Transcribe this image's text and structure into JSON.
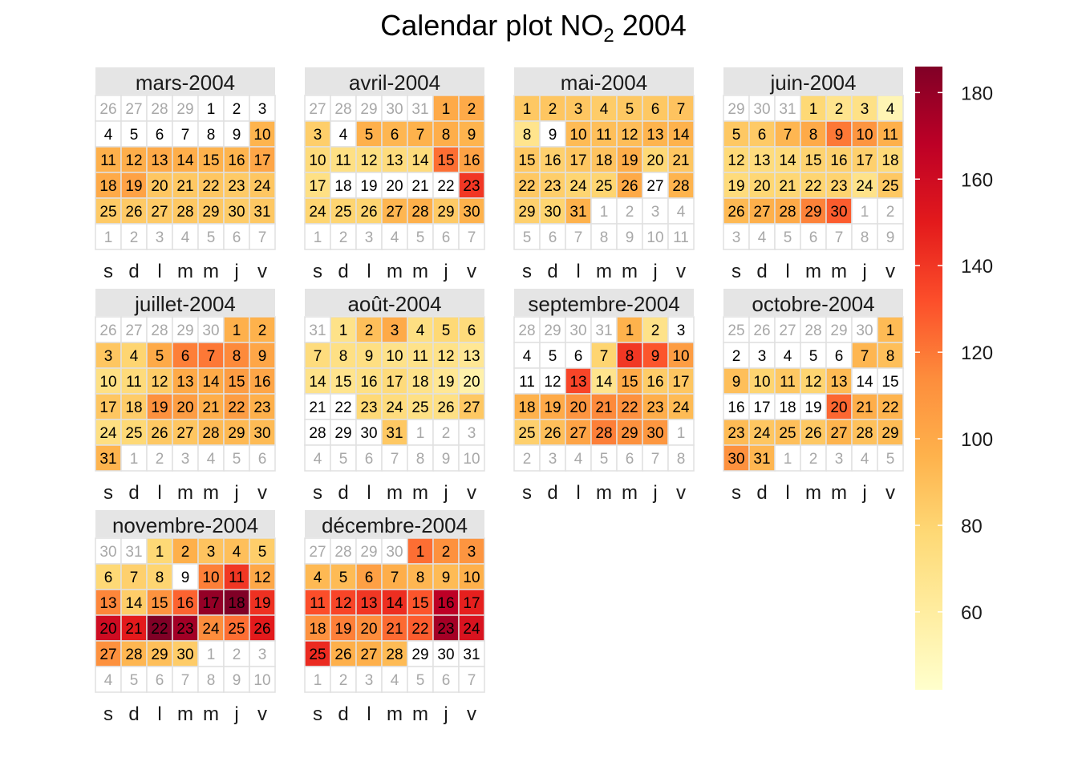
{
  "chart_data": {
    "type": "heatmap",
    "title": "Calendar plot NO",
    "title_subscript": "2",
    "title_suffix": " 2004",
    "weekday_labels": [
      "s",
      "d",
      "l",
      "m",
      "m",
      "j",
      "v"
    ],
    "colorbar": {
      "ticks": [
        60,
        80,
        100,
        120,
        140,
        160,
        180
      ],
      "range": [
        42,
        186
      ],
      "colors": [
        "#FFFFCC",
        "#FFEDA0",
        "#FED976",
        "#FEB24C",
        "#FD8D3C",
        "#FC4E2A",
        "#E31A1C",
        "#BD0026",
        "#800026"
      ]
    },
    "months": [
      {
        "label": "mars-2004",
        "first_weekday": 4,
        "days": 31,
        "prev_days": 29,
        "values": [
          null,
          null,
          null,
          null,
          null,
          null,
          null,
          null,
          null,
          95,
          97,
          98,
          100,
          98,
          96,
          95,
          102,
          100,
          104,
          87,
          86,
          87,
          85,
          87,
          85,
          85,
          85,
          86,
          86,
          84,
          86
        ]
      },
      {
        "label": "avril-2004",
        "first_weekday": 5,
        "days": 30,
        "prev_days": 31,
        "values": [
          100,
          100,
          83,
          null,
          97,
          94,
          96,
          98,
          95,
          76,
          72,
          73,
          75,
          76,
          123,
          104,
          72,
          null,
          null,
          null,
          null,
          null,
          140,
          80,
          80,
          80,
          94,
          97,
          85,
          96
        ]
      },
      {
        "label": "mai-2004",
        "first_weekday": 0,
        "days": 31,
        "prev_days": 30,
        "values": [
          86,
          87,
          87,
          84,
          86,
          86,
          88,
          68,
          null,
          92,
          90,
          91,
          95,
          96,
          86,
          82,
          87,
          88,
          98,
          78,
          87,
          86,
          83,
          80,
          80,
          100,
          null,
          95,
          82,
          80,
          96
        ]
      },
      {
        "label": "juin-2004",
        "first_weekday": 3,
        "days": 30,
        "prev_days": 31,
        "values": [
          78,
          68,
          71,
          52,
          86,
          85,
          94,
          100,
          120,
          110,
          97,
          77,
          75,
          76,
          81,
          82,
          82,
          77,
          76,
          79,
          79,
          80,
          81,
          70,
          86,
          93,
          97,
          100,
          117,
          128
        ]
      },
      {
        "label": "juillet-2004",
        "first_weekday": 5,
        "days": 31,
        "prev_days": 30,
        "values": [
          97,
          96,
          87,
          80,
          100,
          118,
          120,
          115,
          102,
          72,
          76,
          84,
          100,
          100,
          106,
          102,
          87,
          84,
          112,
          106,
          98,
          106,
          97,
          73,
          78,
          86,
          87,
          92,
          93,
          92,
          95
        ]
      },
      {
        "label": "août-2004",
        "first_weekday": 1,
        "days": 31,
        "prev_days": 31,
        "values": [
          70,
          90,
          100,
          73,
          78,
          76,
          75,
          72,
          73,
          70,
          70,
          70,
          65,
          70,
          68,
          72,
          76,
          70,
          65,
          56,
          null,
          null,
          78,
          75,
          72,
          72,
          86,
          null,
          null,
          null,
          86
        ]
      },
      {
        "label": "septembre-2004",
        "first_weekday": 4,
        "days": 30,
        "prev_days": 31,
        "values": [
          96,
          70,
          null,
          null,
          null,
          null,
          80,
          140,
          130,
          106,
          null,
          null,
          135,
          68,
          100,
          84,
          87,
          96,
          100,
          110,
          115,
          112,
          98,
          92,
          82,
          90,
          103,
          118,
          112,
          109
        ]
      },
      {
        "label": "octobre-2004",
        "first_weekday": 6,
        "days": 31,
        "prev_days": 30,
        "values": [
          92,
          null,
          null,
          null,
          null,
          null,
          94,
          90,
          90,
          80,
          86,
          80,
          92,
          null,
          null,
          null,
          null,
          null,
          null,
          125,
          98,
          95,
          92,
          87,
          90,
          86,
          95,
          89,
          92,
          112,
          94
        ]
      },
      {
        "label": "novembre-2004",
        "first_weekday": 2,
        "days": 30,
        "prev_days": 31,
        "values": [
          78,
          97,
          88,
          90,
          83,
          78,
          82,
          80,
          null,
          118,
          140,
          101,
          116,
          84,
          111,
          126,
          180,
          186,
          142,
          160,
          150,
          190,
          176,
          114,
          123,
          150,
          112,
          94,
          90,
          84
        ]
      },
      {
        "label": "décembre-2004",
        "first_weekday": 4,
        "days": 31,
        "prev_days": 30,
        "values": [
          123,
          112,
          110,
          93,
          92,
          105,
          98,
          94,
          92,
          97,
          132,
          135,
          140,
          143,
          130,
          168,
          148,
          112,
          118,
          114,
          124,
          128,
          175,
          155,
          144,
          97,
          97,
          92,
          null,
          null,
          null
        ]
      }
    ]
  }
}
